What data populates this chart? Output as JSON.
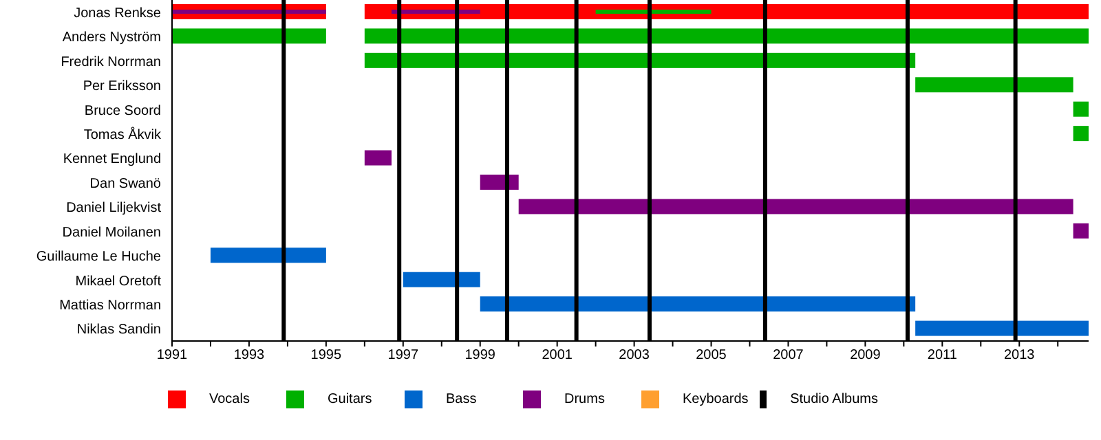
{
  "chart_data": {
    "type": "bar",
    "orientation": "horizontal",
    "categories": [
      "Jonas Renkse",
      "Anders Nyström",
      "Fredrik Norrman",
      "Per Eriksson",
      "Bruce Soord",
      "Tomas Åkvik",
      "Kennet Englund",
      "Dan Swanö",
      "Daniel Liljekvist",
      "Daniel Moilanen",
      "Guillaume Le Huche",
      "Mikael Oretoft",
      "Mattias Norrman",
      "Niklas Sandin"
    ],
    "series": [
      {
        "name": "Vocals",
        "color": "#ff0000",
        "base": [
          1991,
          null,
          null,
          null,
          null,
          null,
          null,
          null,
          null,
          null,
          null,
          null,
          null,
          null
        ],
        "values": [
          4,
          null,
          null,
          null,
          null,
          null,
          null,
          null,
          null,
          null,
          null,
          null,
          null,
          null
        ]
      },
      {
        "color": "#ff0000",
        "base": [
          1996,
          null,
          null,
          null,
          null,
          null,
          null,
          null,
          null,
          null,
          null,
          null,
          null,
          null
        ],
        "values": [
          18.8,
          null,
          null,
          null,
          null,
          null,
          null,
          null,
          null,
          null,
          null,
          null,
          null,
          null
        ]
      },
      {
        "name": "Guitars",
        "color": "#00b000",
        "base": [
          null,
          1991,
          1996,
          2010.3,
          2014.4,
          2014.4,
          null,
          null,
          null,
          null,
          null,
          null,
          null,
          null
        ],
        "values": [
          null,
          4,
          14.3,
          4.1,
          0.4,
          0.4,
          null,
          null,
          null,
          null,
          null,
          null,
          null,
          null
        ]
      },
      {
        "color": "#00b000",
        "base": [
          2002,
          1996,
          null,
          null,
          null,
          null,
          null,
          null,
          null,
          null,
          null,
          null,
          null,
          null
        ],
        "values": [
          3,
          18.8,
          null,
          null,
          null,
          null,
          null,
          null,
          null,
          null,
          null,
          null,
          null,
          null
        ]
      },
      {
        "name": "Bass",
        "color": "#0066cc",
        "base": [
          null,
          null,
          null,
          null,
          null,
          null,
          null,
          null,
          null,
          null,
          1992,
          1997,
          1999,
          2010.3
        ],
        "values": [
          null,
          null,
          null,
          null,
          null,
          null,
          null,
          null,
          null,
          null,
          3,
          2,
          11.3,
          4.5
        ]
      },
      {
        "name": "Drums",
        "color": "#7f007f",
        "base": [
          1991,
          null,
          null,
          null,
          null,
          null,
          1996,
          1999,
          2000,
          2014.4,
          null,
          null,
          null,
          null
        ],
        "values": [
          4,
          null,
          null,
          null,
          null,
          null,
          0.7,
          1,
          14.4,
          0.4,
          null,
          null,
          null,
          null
        ]
      },
      {
        "color": "#7f007f",
        "base": [
          1996.7,
          null,
          null,
          null,
          null,
          null,
          null,
          null,
          null,
          null,
          null,
          null,
          null,
          null
        ],
        "values": [
          2.3,
          null,
          null,
          null,
          null,
          null,
          null,
          null,
          null,
          null,
          null,
          null,
          null,
          null
        ]
      },
      {
        "name": "Keyboards",
        "color": "#ff9f2f",
        "base": [
          null,
          null,
          null,
          null,
          null,
          null,
          null,
          null,
          null,
          null,
          null,
          null,
          null,
          null
        ],
        "values": [
          null,
          null,
          null,
          null,
          null,
          null,
          null,
          null,
          null,
          null,
          null,
          null,
          null,
          null
        ]
      }
    ],
    "xlim": [
      1991,
      2014.8
    ],
    "xticks": [
      1991,
      {
        "value": 1992,
        "label": null
      },
      1993,
      {
        "value": 1994,
        "label": null
      },
      1995,
      {
        "value": 1996,
        "label": null
      },
      1997,
      {
        "value": 1998,
        "label": null
      },
      1999,
      {
        "value": 2000,
        "label": null
      },
      2001,
      {
        "value": 2002,
        "label": null
      },
      2003,
      {
        "value": 2004,
        "label": null
      },
      2005,
      {
        "value": 2006,
        "label": null
      },
      2007,
      {
        "value": 2008,
        "label": null
      },
      2009,
      {
        "value": 2010,
        "label": null
      },
      2011,
      {
        "value": 2012,
        "label": null
      },
      2013,
      {
        "value": 2014,
        "label": null
      }
    ],
    "ref_lines": [
      {
        "axis": "x",
        "value": 1993.9,
        "color": "#000000"
      },
      {
        "axis": "x",
        "value": 1996.9,
        "color": "#000000"
      },
      {
        "axis": "x",
        "value": 1998.4,
        "color": "#000000"
      },
      {
        "axis": "x",
        "value": 1999.7,
        "color": "#000000"
      },
      {
        "axis": "x",
        "value": 2001.5,
        "color": "#000000"
      },
      {
        "axis": "x",
        "value": 2003.4,
        "color": "#000000"
      },
      {
        "axis": "x",
        "value": 2006.4,
        "color": "#000000"
      },
      {
        "axis": "x",
        "value": 2010.1,
        "color": "#000000"
      },
      {
        "axis": "x",
        "value": 2012.9,
        "color": "#000000"
      }
    ],
    "annotations": [
      "Studio Albums"
    ],
    "legend": "bottom"
  }
}
